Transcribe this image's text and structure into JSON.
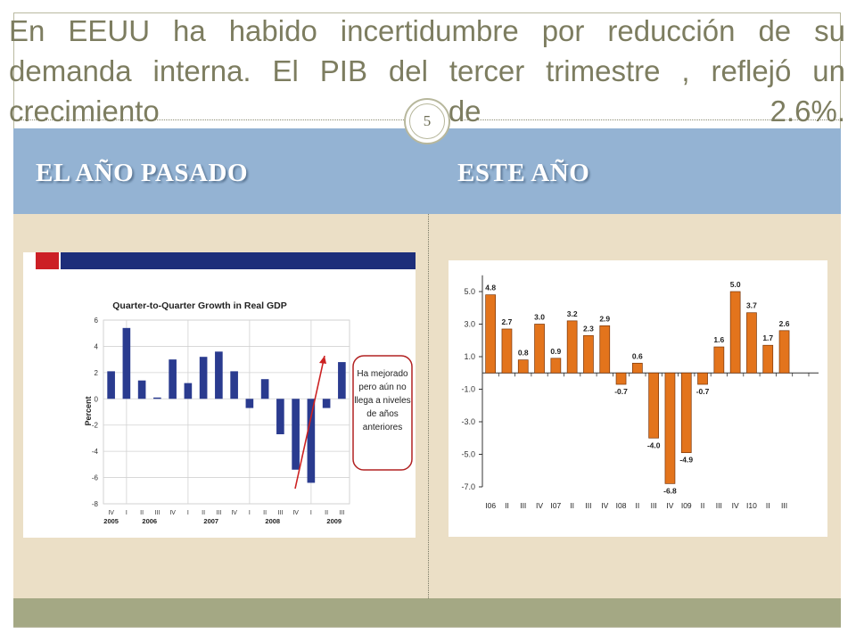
{
  "slide": {
    "title": "En EEUU ha habido incertidumbre por reducción de su demanda interna. El PIB del tercer trimestre , reflejó un crecimiento de 2.6%.",
    "page_number": "5",
    "columns": {
      "left_heading": "EL AÑO  PASADO",
      "right_heading": "ESTE  AÑO"
    },
    "colors": {
      "header_band": "#94b3d3",
      "content_band": "#ebdfc6",
      "footer_band": "#a4a884",
      "title_text": "#7d7d60"
    }
  },
  "chart_data": [
    {
      "type": "bar",
      "title": "Quarter-to-Quarter Growth in Real GDP",
      "ylabel": "Percent",
      "ylim": [
        -8,
        6
      ],
      "yticks": [
        6,
        4,
        2,
        0,
        -2,
        -4,
        -6,
        -8
      ],
      "categories": [
        "IV",
        "I",
        "II",
        "III",
        "IV",
        "I",
        "II",
        "III",
        "IV",
        "I",
        "II",
        "III",
        "IV",
        "I",
        "II",
        "III"
      ],
      "year_labels": [
        "2005",
        "2006",
        "2007",
        "2008",
        "2009"
      ],
      "values": [
        2.1,
        5.4,
        1.4,
        0.1,
        3.0,
        1.2,
        3.2,
        3.6,
        2.1,
        -0.7,
        1.5,
        -2.7,
        -5.4,
        -6.4,
        -0.7,
        2.8
      ],
      "bar_color": "#2a3b8f",
      "annotation": "Ha mejorado pero aún no llega a niveles de años anteriores",
      "annotation_lines": [
        "Ha mejorado",
        "pero aún no",
        "llega a niveles",
        "de años",
        "anteriores"
      ],
      "grid": true
    },
    {
      "type": "bar",
      "ylim": [
        -7,
        6
      ],
      "yticks": [
        "5.0",
        "3.0",
        "1.0",
        "-1.0",
        "-3.0",
        "-5.0",
        "-7.0"
      ],
      "categories": [
        "I06",
        "II",
        "III",
        "IV",
        "I07",
        "II",
        "III",
        "IV",
        "I08",
        "II",
        "III",
        "IV",
        "I09",
        "II",
        "III",
        "IV",
        "I10",
        "II",
        "III"
      ],
      "values": [
        4.8,
        2.7,
        0.8,
        3.0,
        0.9,
        3.2,
        2.3,
        2.9,
        -0.7,
        0.6,
        -4.0,
        -6.8,
        -4.9,
        -0.7,
        1.6,
        5.0,
        3.7,
        1.7,
        2.6
      ],
      "value_labels": [
        "4.8",
        "2.7",
        "0.8",
        "3.0",
        "0.9",
        "3.2",
        "2.3",
        "2.9",
        "-0.7",
        "0.6",
        "-4.0",
        "-6.8",
        "-4.9",
        "-0.7",
        "1.6",
        "5.0",
        "3.7",
        "1.7",
        "2.6"
      ],
      "bar_color": "#e3741c",
      "bar_edge": "#7a3608",
      "grid": false
    }
  ]
}
